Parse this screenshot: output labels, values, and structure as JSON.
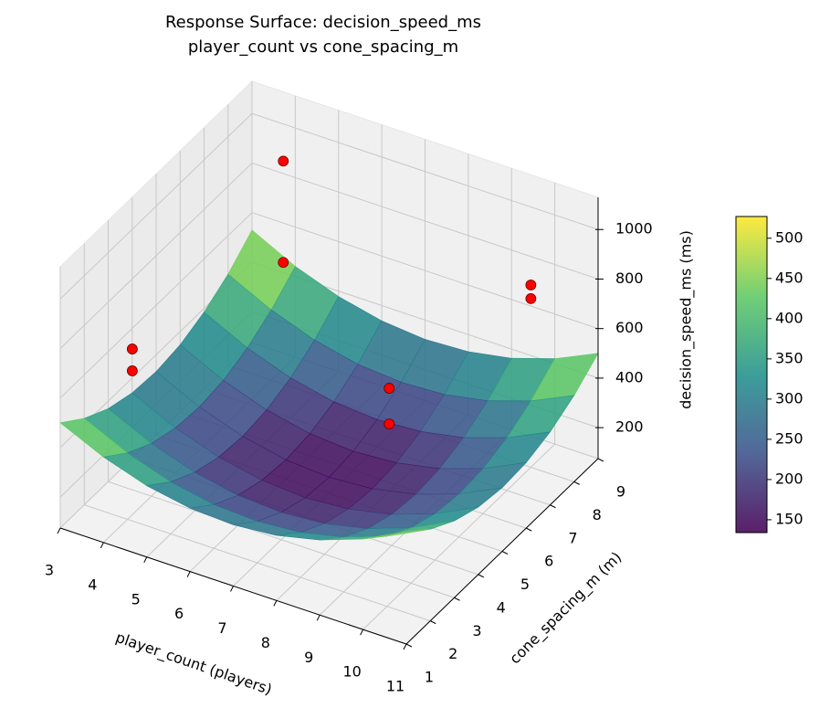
{
  "chart_data": {
    "type": "surface3d",
    "title": [
      "Response Surface: decision_speed_ms",
      "player_count vs cone_spacing_m"
    ],
    "xlabel": "player_count (players)",
    "ylabel": "cone_spacing_m (m)",
    "zlabel": "decision_speed_ms (ms)",
    "xlim": [
      3,
      11
    ],
    "xticks": [
      3,
      4,
      5,
      6,
      7,
      8,
      9,
      10,
      11
    ],
    "ylim": [
      1,
      9
    ],
    "yticks": [
      1,
      2,
      3,
      4,
      5,
      6,
      7,
      8,
      9
    ],
    "zlim": [
      75,
      1130
    ],
    "zticks": [
      200,
      400,
      600,
      800,
      1000
    ],
    "grid": true,
    "colormap": "viridis",
    "surface": {
      "x": [
        3,
        4,
        5,
        6,
        7,
        8,
        9,
        10,
        11
      ],
      "y": [
        1,
        2,
        3,
        4,
        5,
        6,
        7,
        8,
        9
      ],
      "z": [
        [
          500,
          420,
          363,
          331,
          322,
          338,
          378,
          441,
          529
        ],
        [
          424,
          343,
          285,
          252,
          243,
          257,
          296,
          359,
          445
        ],
        [
          370,
          288,
          230,
          196,
          186,
          199,
          237,
          299,
          385
        ],
        [
          340,
          257,
          198,
          163,
          151,
          164,
          201,
          262,
          347
        ],
        [
          332,
          248,
          188,
          152,
          140,
          152,
          188,
          248,
          332
        ],
        [
          347,
          262,
          201,
          164,
          151,
          163,
          198,
          257,
          340
        ],
        [
          385,
          299,
          237,
          199,
          186,
          196,
          230,
          288,
          370
        ],
        [
          445,
          359,
          296,
          257,
          243,
          252,
          285,
          343,
          424
        ],
        [
          529,
          441,
          378,
          338,
          322,
          331,
          363,
          420,
          500
        ]
      ]
    },
    "points": {
      "color": "#ff0000",
      "x": [
        4,
        4,
        4,
        4,
        10,
        10,
        8,
        8
      ],
      "y": [
        8.5,
        8.5,
        2.2,
        2.2,
        8,
        8,
        5.7,
        5.7
      ],
      "z": [
        913,
        504,
        744,
        656,
        811,
        756,
        492,
        348
      ]
    },
    "colorbar": {
      "lim": [
        134,
        527
      ],
      "ticks": [
        150,
        200,
        250,
        300,
        350,
        400,
        450,
        500
      ]
    }
  }
}
